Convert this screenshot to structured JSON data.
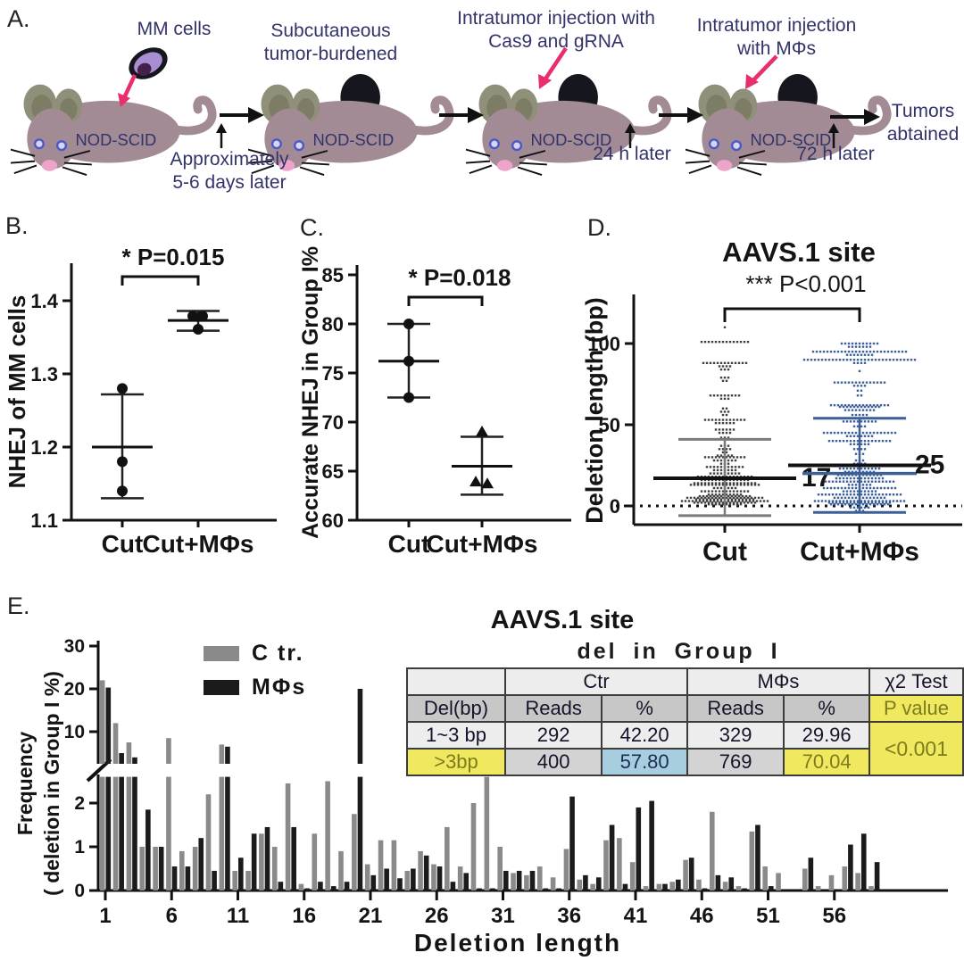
{
  "panelA": {
    "label": "A.",
    "mouse_name": "NOD-SCID",
    "caption_mm_cells": "MM cells",
    "caption_subq": "Subcutaneous\ntumor-burdened",
    "caption_cas9": "Intratumor injection with\nCas9 and gRNA",
    "caption_mphi": "Intratumor injection\nwith MΦs",
    "step1_label": "Approximately\n5-6 days later",
    "step2_label": "24 h later",
    "step3_label": "72 h later",
    "outcome": "Tumors\nabtained"
  },
  "panelB": {
    "label": "B."
  },
  "panelC": {
    "label": "C."
  },
  "panelD": {
    "label": "D."
  },
  "panelE": {
    "label": "E.",
    "table": {
      "title": "del in Group I",
      "group_ctr": "Ctr",
      "group_mphi": "MΦs",
      "chi_header": "χ2 Test",
      "h_del": "Del(bp)",
      "h_reads": "Reads",
      "h_pct": "%",
      "h_pvalue": "P value",
      "rows": [
        {
          "label": "1~3 bp",
          "ctr_reads": "292",
          "ctr_pct": "42.20",
          "mphi_reads": "329",
          "mphi_pct": "29.96"
        },
        {
          "label": ">3bp",
          "ctr_reads": "400",
          "ctr_pct": "57.80",
          "mphi_reads": "769",
          "mphi_pct": "70.04"
        }
      ],
      "p_value": "<0.001"
    }
  },
  "colors": {
    "navy_text": "#33336b",
    "mouse_body": "#a28b94",
    "mouse_ear": "#90907a",
    "tumor": "#16161f",
    "pink_arrow": "#e82f6b",
    "ctr_gray": "#8a8a8a",
    "mphi_black": "#1b1b1b",
    "blue_group": "#3c5f98",
    "highlight_yellow": "#f0e95f",
    "highlight_blue": "#a6cede"
  },
  "chart_data": [
    {
      "id": "B",
      "type": "scatter",
      "ylabel": "NHEJ of MM cells",
      "ylim": [
        1.1,
        1.45
      ],
      "yticks": [
        "1.1",
        "1.2",
        "1.3",
        "1.4"
      ],
      "sig": "* P=0.015",
      "categories": [
        "Cut",
        "Cut+MΦs"
      ],
      "series": [
        {
          "name": "Cut",
          "marker": "circle",
          "points": [
            [
              0,
              1.28
            ],
            [
              0,
              1.18
            ],
            [
              0,
              1.14
            ]
          ],
          "mean": 1.2,
          "err": [
            1.13,
            1.272
          ]
        },
        {
          "name": "Cut+MΦs",
          "marker": "circle",
          "points": [
            [
              -6,
              1.379
            ],
            [
              5,
              1.379
            ],
            [
              0,
              1.361
            ]
          ],
          "mean": 1.373,
          "err": [
            1.359,
            1.386
          ]
        }
      ]
    },
    {
      "id": "C",
      "type": "scatter",
      "ylabel": "Accurate NHEJ in Group I%",
      "ylim": [
        60,
        85
      ],
      "yticks": [
        "60",
        "65",
        "70",
        "75",
        "80",
        "85"
      ],
      "sig": "* P=0.018",
      "categories": [
        "Cut",
        "Cut+MΦs"
      ],
      "series": [
        {
          "name": "Cut",
          "marker": "circle",
          "points": [
            [
              0,
              80
            ],
            [
              0,
              76.2
            ],
            [
              0,
              72.5
            ]
          ],
          "mean": 76.2,
          "err": [
            72.5,
            80
          ]
        },
        {
          "name": "Cut+MΦs",
          "marker": "triangle",
          "points": [
            [
              0,
              69
            ],
            [
              -7,
              63.9
            ],
            [
              6,
              63.7
            ]
          ],
          "mean": 65.5,
          "err": [
            62.6,
            68.5
          ]
        }
      ]
    },
    {
      "id": "D",
      "type": "swarm",
      "title": "AAVS.1  site",
      "sig": "*** P<0.001",
      "ylabel": "Deletion length (bp)",
      "ylim": [
        -15,
        125
      ],
      "yticks": [
        "0",
        "50",
        "100"
      ],
      "categories": [
        "Cut",
        "Cut+MΦs"
      ],
      "groups": [
        {
          "name": "Cut",
          "color": "#3f3f3f",
          "err_color": "#7a7a7a",
          "mean": 17,
          "mean_label": "17",
          "err": [
            -6,
            41
          ],
          "rows": [
            [
              110,
              1
            ],
            [
              101,
              14
            ],
            [
              88,
              13
            ],
            [
              86,
              4
            ],
            [
              84,
              3
            ],
            [
              79,
              3
            ],
            [
              77,
              2
            ],
            [
              68,
              9
            ],
            [
              66,
              3
            ],
            [
              60,
              2
            ],
            [
              58,
              3
            ],
            [
              56,
              2
            ],
            [
              53,
              12
            ],
            [
              51,
              6
            ],
            [
              47,
              6
            ],
            [
              45,
              4
            ],
            [
              42,
              3
            ],
            [
              37,
              3
            ],
            [
              35,
              4
            ],
            [
              33,
              2
            ],
            [
              31,
              5
            ],
            [
              30,
              12
            ],
            [
              28,
              7
            ],
            [
              26,
              3
            ],
            [
              24,
              11
            ],
            [
              22,
              7
            ],
            [
              20,
              9
            ],
            [
              18,
              16
            ],
            [
              16,
              14
            ],
            [
              14,
              18
            ],
            [
              13,
              20
            ],
            [
              11,
              7
            ],
            [
              9,
              14
            ],
            [
              7,
              10
            ],
            [
              6,
              15
            ],
            [
              5,
              22
            ],
            [
              4,
              17
            ],
            [
              3,
              25
            ],
            [
              2,
              18
            ],
            [
              1,
              10
            ]
          ]
        },
        {
          "name": "Cut+MΦs",
          "color": "#3c5f98",
          "err_color": "#3c5f98",
          "mean": 25,
          "mean_label": "25",
          "err": [
            -4,
            54
          ],
          "extra_line": 20,
          "rows": [
            [
              100,
              11
            ],
            [
              98,
              7
            ],
            [
              95,
              27
            ],
            [
              93,
              8
            ],
            [
              90,
              32
            ],
            [
              88,
              4
            ],
            [
              83,
              1
            ],
            [
              76,
              15
            ],
            [
              74,
              4
            ],
            [
              71,
              2
            ],
            [
              68,
              2
            ],
            [
              62,
              17
            ],
            [
              61,
              12
            ],
            [
              59,
              9
            ],
            [
              56,
              5
            ],
            [
              52,
              10
            ],
            [
              49,
              4
            ],
            [
              45,
              21
            ],
            [
              43,
              8
            ],
            [
              40,
              18
            ],
            [
              38,
              6
            ],
            [
              35,
              4
            ],
            [
              32,
              3
            ],
            [
              28,
              3
            ],
            [
              26,
              4
            ],
            [
              23,
              12
            ],
            [
              21,
              9
            ],
            [
              19,
              13
            ],
            [
              17,
              14
            ],
            [
              15,
              20
            ],
            [
              13,
              7
            ],
            [
              11,
              21
            ],
            [
              9,
              10
            ],
            [
              7,
              24
            ],
            [
              5,
              15
            ],
            [
              3,
              26
            ],
            [
              2,
              18
            ],
            [
              1,
              17
            ],
            [
              -1,
              6
            ],
            [
              -3,
              3
            ]
          ]
        }
      ]
    },
    {
      "id": "E",
      "type": "bar",
      "title": "AAVS.1 site",
      "xlabel": "Deletion length",
      "ylabel_lines": [
        "Frequency",
        "( deletion in Group I %)"
      ],
      "x_first": 1,
      "x_count": 59,
      "xticks": [
        1,
        6,
        11,
        16,
        21,
        26,
        31,
        36,
        41,
        46,
        51,
        56
      ],
      "lower_ticks": [
        0,
        1,
        2
      ],
      "upper_ticks": [
        10,
        20,
        30
      ],
      "axis_break": true,
      "legend": [
        {
          "label": "C tr.",
          "color": "#8a8a8a"
        },
        {
          "label": "MΦs",
          "color": "#1b1b1b"
        }
      ],
      "series": [
        {
          "name": "C tr.",
          "color": "#8a8a8a",
          "values": [
            22,
            12,
            7.5,
            1,
            1,
            8.5,
            0.9,
            1,
            2.2,
            7,
            0.45,
            0.45,
            1.3,
            1,
            2.45,
            0.15,
            1.3,
            2.5,
            0.9,
            1.75,
            0.6,
            1.15,
            1.15,
            0.45,
            0.9,
            0.6,
            1.45,
            0.55,
            2,
            2.9,
            1,
            0.4,
            0.35,
            0.55,
            0.3,
            0.95,
            0.25,
            0.15,
            1.15,
            1.2,
            0.65,
            0.1,
            0.15,
            0.2,
            0.7,
            0.25,
            1.8,
            0.2,
            0.1,
            1.35,
            0.55,
            0.4,
            0,
            0.5,
            0.1,
            0.35,
            0.55,
            0.4,
            0.1
          ]
        },
        {
          "name": "MΦs",
          "color": "#1b1b1b",
          "values": [
            20.3,
            5,
            4,
            1.85,
            1,
            0.55,
            0.55,
            1.2,
            0.45,
            6.5,
            0.75,
            1.3,
            1.45,
            0.2,
            1.45,
            0.05,
            0.2,
            0.1,
            0.2,
            20,
            0.35,
            0.5,
            0.28,
            0.5,
            0.8,
            0.55,
            0.2,
            0.4,
            0.05,
            0.05,
            0.45,
            0.45,
            0.45,
            0.05,
            0.05,
            2.15,
            0.35,
            0.3,
            1.5,
            0.15,
            1.9,
            2.05,
            0.15,
            0.25,
            0.75,
            0.05,
            0.35,
            0.3,
            0.05,
            1.5,
            0.1,
            0,
            0,
            0.75,
            0,
            0,
            1.05,
            1.3,
            0.65
          ]
        }
      ]
    }
  ]
}
